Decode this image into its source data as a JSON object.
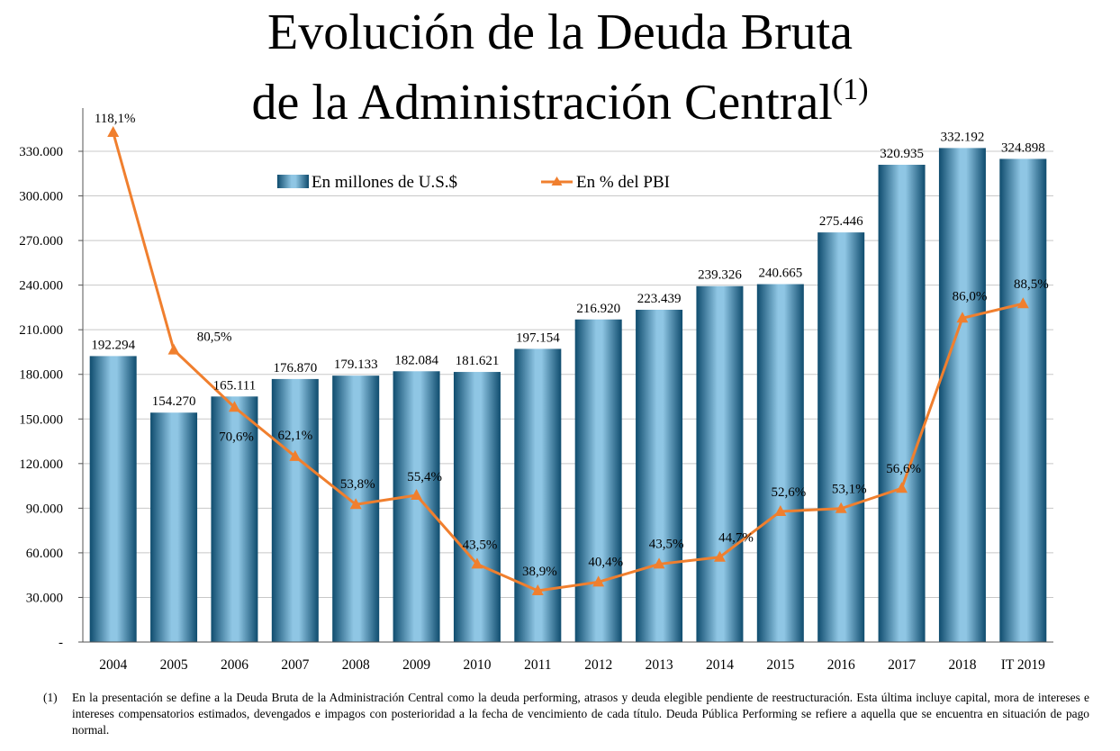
{
  "chart_data": {
    "type": "bar",
    "title_line1": "Evolución de la Deuda Bruta",
    "title_line2": "de la Administración Central",
    "title_superscript": "(1)",
    "categories": [
      "2004",
      "2005",
      "2006",
      "2007",
      "2008",
      "2009",
      "2010",
      "2011",
      "2012",
      "2013",
      "2014",
      "2015",
      "2016",
      "2017",
      "2018",
      "IT 2019"
    ],
    "series": [
      {
        "name": "En millones de U.S.$",
        "type": "bar",
        "axis": "left",
        "values": [
          192294,
          154270,
          165111,
          176870,
          179133,
          182084,
          181621,
          197154,
          216920,
          223439,
          239326,
          240665,
          275446,
          320935,
          332192,
          324898
        ],
        "labels": [
          "192.294",
          "154.270",
          "165.111",
          "176.870",
          "179.133",
          "182.084",
          "181.621",
          "197.154",
          "216.920",
          "223.439",
          "239.326",
          "240.665",
          "275.446",
          "320.935",
          "332.192",
          "324.898"
        ]
      },
      {
        "name": "En % del PBI",
        "type": "line",
        "axis": "secondary",
        "values": [
          118.1,
          80.5,
          70.6,
          62.1,
          53.8,
          55.4,
          43.5,
          38.9,
          40.4,
          43.5,
          44.7,
          52.6,
          53.1,
          56.6,
          86.0,
          88.5
        ],
        "labels": [
          "118,1%",
          "80,5%",
          "70,6%",
          "62,1%",
          "53,8%",
          "55,4%",
          "43,5%",
          "38,9%",
          "40,4%",
          "43,5%",
          "44,7%",
          "52,6%",
          "53,1%",
          "56,6%",
          "86,0%",
          "88,5%"
        ]
      }
    ],
    "y_ticks": [
      {
        "value": 0,
        "label": "-"
      },
      {
        "value": 30000,
        "label": "30.000"
      },
      {
        "value": 60000,
        "label": "60.000"
      },
      {
        "value": 90000,
        "label": "90.000"
      },
      {
        "value": 120000,
        "label": "120.000"
      },
      {
        "value": 150000,
        "label": "150.000"
      },
      {
        "value": 180000,
        "label": "180.000"
      },
      {
        "value": 210000,
        "label": "210.000"
      },
      {
        "value": 240000,
        "label": "240.000"
      },
      {
        "value": 270000,
        "label": "270.000"
      },
      {
        "value": 300000,
        "label": "300.000"
      },
      {
        "value": 330000,
        "label": "330.000"
      }
    ],
    "ylim": [
      0,
      350000
    ],
    "y2lim": [
      28,
      120
    ],
    "grid": true,
    "legend": "top-center",
    "colors": {
      "bar_dark": "#0f4c6e",
      "bar_light": "#8fc6e4",
      "line": "#f07f2e",
      "grid": "#c8c8c8"
    }
  },
  "footnote": {
    "number": "(1)",
    "text": "En la presentación se define a la Deuda Bruta de la Administración Central como la deuda performing, atrasos y deuda elegible pendiente de reestructuración. Esta última incluye capital, mora de intereses e intereses compensatorios estimados, devengados e impagos con posterioridad a la fecha de vencimiento de cada título. Deuda Pública Performing se refiere a aquella que se encuentra en situación de pago normal."
  }
}
